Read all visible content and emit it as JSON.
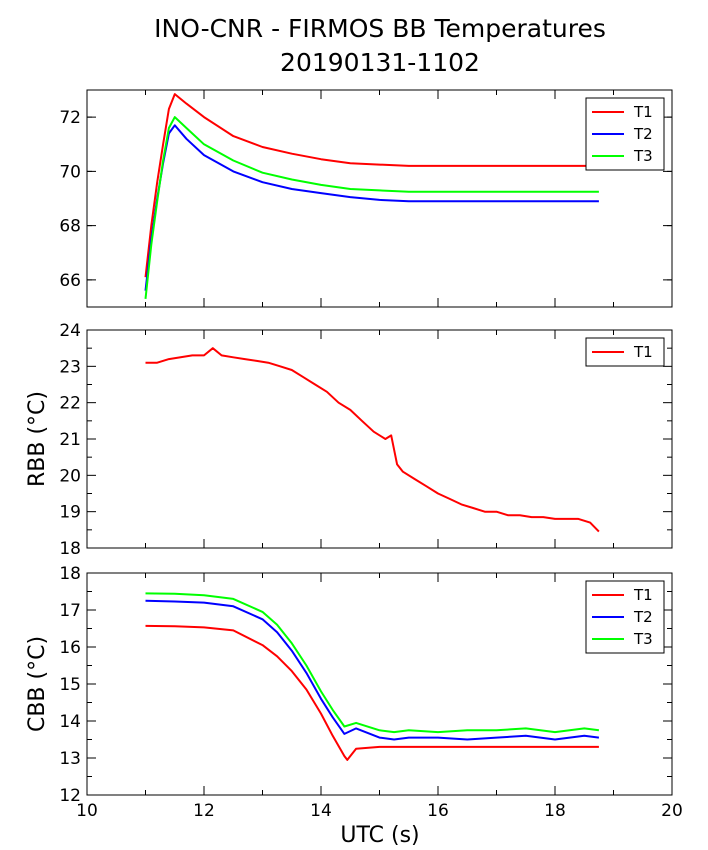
{
  "title": {
    "line1": "INO-CNR - FIRMOS BB Temperatures",
    "line2": "20190131-1102"
  },
  "chart_data": [
    {
      "type": "line",
      "panel": "top",
      "ylabel": "",
      "xlim": [
        10,
        20
      ],
      "ylim": [
        65,
        73
      ],
      "yticks": [
        66,
        68,
        70,
        72
      ],
      "legend": "top-right",
      "series": [
        {
          "name": "T1",
          "color": "#ff0000",
          "x": [
            11.0,
            11.1,
            11.2,
            11.3,
            11.4,
            11.5,
            11.7,
            12.0,
            12.5,
            13.0,
            13.5,
            14.0,
            14.5,
            15.0,
            15.5,
            16.0,
            16.5,
            17.0,
            17.5,
            18.0,
            18.5,
            18.75
          ],
          "y": [
            66.1,
            68.0,
            69.6,
            71.0,
            72.3,
            72.85,
            72.5,
            72.0,
            71.3,
            70.9,
            70.65,
            70.45,
            70.3,
            70.25,
            70.2,
            70.2,
            70.2,
            70.2,
            70.2,
            70.2,
            70.2,
            70.2
          ]
        },
        {
          "name": "T2",
          "color": "#0000ff",
          "x": [
            11.0,
            11.1,
            11.2,
            11.3,
            11.4,
            11.5,
            11.7,
            12.0,
            12.5,
            13.0,
            13.5,
            14.0,
            14.5,
            15.0,
            15.5,
            16.0,
            16.5,
            17.0,
            17.5,
            18.0,
            18.5,
            18.75
          ],
          "y": [
            65.6,
            67.5,
            69.0,
            70.3,
            71.4,
            71.7,
            71.2,
            70.6,
            70.0,
            69.6,
            69.35,
            69.2,
            69.05,
            68.95,
            68.9,
            68.9,
            68.9,
            68.9,
            68.9,
            68.9,
            68.9,
            68.9
          ]
        },
        {
          "name": "T3",
          "color": "#00ff00",
          "x": [
            11.0,
            11.1,
            11.2,
            11.3,
            11.4,
            11.5,
            11.7,
            12.0,
            12.5,
            13.0,
            13.5,
            14.0,
            14.5,
            15.0,
            15.5,
            16.0,
            16.5,
            17.0,
            17.5,
            18.0,
            18.5,
            18.75
          ],
          "y": [
            65.3,
            67.3,
            68.9,
            70.4,
            71.6,
            72.0,
            71.6,
            71.0,
            70.4,
            69.95,
            69.7,
            69.5,
            69.35,
            69.3,
            69.25,
            69.25,
            69.25,
            69.25,
            69.25,
            69.25,
            69.25,
            69.25
          ]
        }
      ]
    },
    {
      "type": "line",
      "panel": "middle",
      "ylabel": "RBB (°C)",
      "xlim": [
        10,
        20
      ],
      "ylim": [
        18,
        24
      ],
      "yticks": [
        18,
        19,
        20,
        21,
        22,
        23,
        24
      ],
      "legend": "top-right",
      "series": [
        {
          "name": "T1",
          "color": "#ff0000",
          "x": [
            11.0,
            11.2,
            11.4,
            11.6,
            11.8,
            12.0,
            12.15,
            12.3,
            12.5,
            12.7,
            12.9,
            13.1,
            13.3,
            13.5,
            13.7,
            13.9,
            14.1,
            14.3,
            14.5,
            14.7,
            14.9,
            15.1,
            15.2,
            15.3,
            15.4,
            15.6,
            15.8,
            16.0,
            16.2,
            16.4,
            16.6,
            16.8,
            17.0,
            17.2,
            17.4,
            17.6,
            17.8,
            18.0,
            18.2,
            18.4,
            18.6,
            18.75
          ],
          "y": [
            23.1,
            23.1,
            23.2,
            23.25,
            23.3,
            23.3,
            23.5,
            23.3,
            23.25,
            23.2,
            23.15,
            23.1,
            23.0,
            22.9,
            22.7,
            22.5,
            22.3,
            22.0,
            21.8,
            21.5,
            21.2,
            21.0,
            21.1,
            20.3,
            20.1,
            19.9,
            19.7,
            19.5,
            19.35,
            19.2,
            19.1,
            19.0,
            19.0,
            18.9,
            18.9,
            18.85,
            18.85,
            18.8,
            18.8,
            18.8,
            18.7,
            18.45
          ]
        }
      ]
    },
    {
      "type": "line",
      "panel": "bottom",
      "ylabel": "CBB (°C)",
      "xlabel": "UTC (s)",
      "xlim": [
        10,
        20
      ],
      "ylim": [
        12,
        18
      ],
      "xticks": [
        10,
        12,
        14,
        16,
        18,
        20
      ],
      "yticks": [
        12,
        13,
        14,
        15,
        16,
        17,
        18
      ],
      "legend": "top-right",
      "series": [
        {
          "name": "T1",
          "color": "#ff0000",
          "x": [
            11.0,
            11.5,
            12.0,
            12.5,
            13.0,
            13.25,
            13.5,
            13.75,
            14.0,
            14.2,
            14.4,
            14.45,
            14.6,
            15.0,
            15.5,
            16.0,
            16.5,
            17.0,
            17.5,
            18.0,
            18.5,
            18.75
          ],
          "y": [
            16.57,
            16.56,
            16.53,
            16.45,
            16.05,
            15.75,
            15.35,
            14.85,
            14.2,
            13.6,
            13.05,
            12.95,
            13.25,
            13.3,
            13.3,
            13.3,
            13.3,
            13.3,
            13.3,
            13.3,
            13.3,
            13.3
          ]
        },
        {
          "name": "T2",
          "color": "#0000ff",
          "x": [
            11.0,
            11.5,
            12.0,
            12.5,
            13.0,
            13.25,
            13.5,
            13.75,
            14.0,
            14.2,
            14.4,
            14.6,
            15.0,
            15.25,
            15.5,
            16.0,
            16.5,
            17.0,
            17.5,
            18.0,
            18.5,
            18.75
          ],
          "y": [
            17.25,
            17.23,
            17.2,
            17.1,
            16.75,
            16.4,
            15.9,
            15.3,
            14.6,
            14.1,
            13.65,
            13.8,
            13.55,
            13.5,
            13.55,
            13.55,
            13.5,
            13.55,
            13.6,
            13.5,
            13.6,
            13.55
          ]
        },
        {
          "name": "T3",
          "color": "#00ff00",
          "x": [
            11.0,
            11.5,
            12.0,
            12.5,
            13.0,
            13.25,
            13.5,
            13.75,
            14.0,
            14.2,
            14.4,
            14.6,
            15.0,
            15.25,
            15.5,
            16.0,
            16.5,
            17.0,
            17.5,
            18.0,
            18.5,
            18.75
          ],
          "y": [
            17.45,
            17.44,
            17.4,
            17.3,
            16.95,
            16.6,
            16.1,
            15.5,
            14.8,
            14.3,
            13.85,
            13.95,
            13.75,
            13.7,
            13.75,
            13.7,
            13.75,
            13.75,
            13.8,
            13.7,
            13.8,
            13.75
          ]
        }
      ]
    }
  ]
}
